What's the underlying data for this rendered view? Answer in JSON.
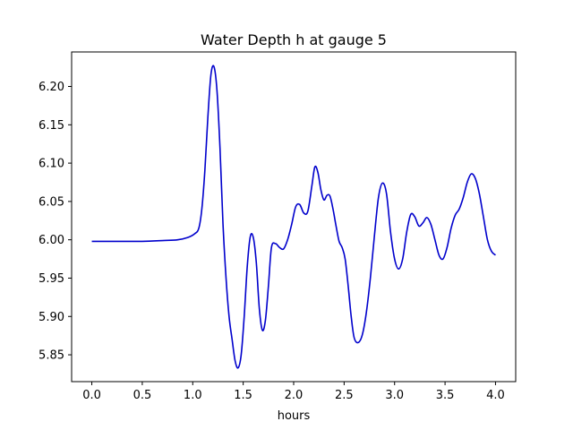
{
  "chart_data": {
    "type": "line",
    "title": "Water Depth h at gauge 5",
    "xlabel": "hours",
    "ylabel": "",
    "xlim": [
      -0.2,
      4.2
    ],
    "ylim": [
      5.815,
      6.245
    ],
    "xticks": [
      0.0,
      0.5,
      1.0,
      1.5,
      2.0,
      2.5,
      3.0,
      3.5,
      4.0
    ],
    "xtick_labels": [
      "0.0",
      "0.5",
      "1.0",
      "1.5",
      "2.0",
      "2.5",
      "3.0",
      "3.5",
      "4.0"
    ],
    "yticks": [
      5.85,
      5.9,
      5.95,
      6.0,
      6.05,
      6.1,
      6.15,
      6.2
    ],
    "ytick_labels": [
      "5.85",
      "5.90",
      "5.95",
      "6.00",
      "6.05",
      "6.10",
      "6.15",
      "6.20"
    ],
    "grid": false,
    "series": [
      {
        "color": "#0000cc",
        "x": [
          0.0,
          0.3,
          0.5,
          0.7,
          0.85,
          0.95,
          1.02,
          1.06,
          1.09,
          1.12,
          1.15,
          1.18,
          1.21,
          1.24,
          1.27,
          1.3,
          1.33,
          1.36,
          1.39,
          1.42,
          1.45,
          1.48,
          1.51,
          1.54,
          1.57,
          1.6,
          1.63,
          1.66,
          1.69,
          1.72,
          1.75,
          1.78,
          1.82,
          1.86,
          1.9,
          1.94,
          1.98,
          2.02,
          2.06,
          2.1,
          2.14,
          2.18,
          2.21,
          2.24,
          2.27,
          2.3,
          2.33,
          2.36,
          2.39,
          2.42,
          2.45,
          2.48,
          2.51,
          2.54,
          2.57,
          2.6,
          2.64,
          2.68,
          2.72,
          2.76,
          2.8,
          2.84,
          2.88,
          2.92,
          2.96,
          3.0,
          3.04,
          3.08,
          3.12,
          3.16,
          3.2,
          3.24,
          3.28,
          3.32,
          3.36,
          3.4,
          3.44,
          3.48,
          3.52,
          3.56,
          3.6,
          3.64,
          3.68,
          3.72,
          3.76,
          3.8,
          3.84,
          3.88,
          3.92,
          3.96,
          4.0
        ],
        "y": [
          5.998,
          5.998,
          5.998,
          5.999,
          6.0,
          6.003,
          6.008,
          6.015,
          6.04,
          6.09,
          6.16,
          6.215,
          6.226,
          6.195,
          6.12,
          6.02,
          5.95,
          5.9,
          5.87,
          5.842,
          5.833,
          5.85,
          5.9,
          5.965,
          6.004,
          6.003,
          5.97,
          5.91,
          5.882,
          5.895,
          5.94,
          5.99,
          5.995,
          5.99,
          5.988,
          6.0,
          6.02,
          6.043,
          6.046,
          6.035,
          6.037,
          6.07,
          6.095,
          6.088,
          6.065,
          6.052,
          6.058,
          6.057,
          6.04,
          6.018,
          5.998,
          5.99,
          5.975,
          5.94,
          5.9,
          5.872,
          5.866,
          5.876,
          5.905,
          5.95,
          6.005,
          6.055,
          6.074,
          6.06,
          6.01,
          5.975,
          5.962,
          5.975,
          6.01,
          6.033,
          6.03,
          6.018,
          6.022,
          6.029,
          6.02,
          6.0,
          5.98,
          5.975,
          5.99,
          6.015,
          6.032,
          6.04,
          6.055,
          6.075,
          6.086,
          6.08,
          6.06,
          6.03,
          6.0,
          5.985,
          5.98
        ]
      }
    ]
  }
}
